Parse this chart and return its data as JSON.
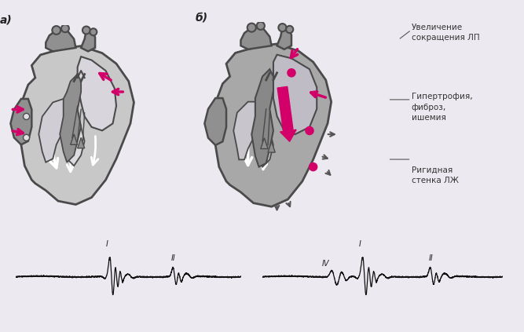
{
  "bg_color": "#ede9f0",
  "label_a": "а)",
  "label_b": "б)",
  "text_1": "Увеличение\nсокращения ЛП",
  "text_2": "Гипертрофия,\nфиброз,\nишемия",
  "text_3": "Ригидная\nстенка ЛЖ",
  "ecg_label_I_a": "I",
  "ecg_label_II_a": "II",
  "ecg_label_IV_b": "IV",
  "ecg_label_I_b": "I",
  "ecg_label_II_b": "II",
  "arrow_color": "#d4006a",
  "dot_color": "#d4006a",
  "ecg_color": "#111111",
  "wall_dark": "#4a4a4a",
  "wall_mid": "#909090",
  "wall_light": "#c8c8c8",
  "cavity_color": "#e0dde5",
  "font_size_label": 10,
  "font_size_text": 7.5,
  "font_size_ecg": 7
}
